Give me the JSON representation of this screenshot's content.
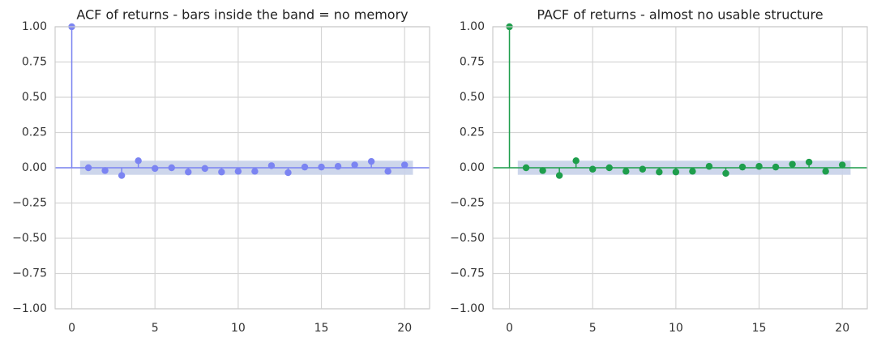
{
  "chart_data": [
    {
      "type": "stem",
      "title": "ACF of returns - bars inside the band = no memory",
      "x": [
        0,
        1,
        2,
        3,
        4,
        5,
        6,
        7,
        8,
        9,
        10,
        11,
        12,
        13,
        14,
        15,
        16,
        17,
        18,
        19,
        20
      ],
      "values": [
        1.0,
        0.0,
        -0.02,
        -0.055,
        0.05,
        -0.005,
        0.0,
        -0.03,
        -0.005,
        -0.03,
        -0.025,
        -0.025,
        0.015,
        -0.035,
        0.005,
        0.005,
        0.01,
        0.02,
        0.045,
        -0.025,
        0.02
      ],
      "color": "#7b84f2",
      "band": 0.05,
      "band_color": "#c8d2e9",
      "xlim": [
        -1,
        21.5
      ],
      "ylim": [
        -1,
        1
      ],
      "xticks": [
        0,
        5,
        10,
        15,
        20
      ],
      "yticks": [
        {
          "value": -1,
          "label": "−1.00"
        },
        {
          "value": -0.75,
          "label": "−0.75"
        },
        {
          "value": -0.5,
          "label": "−0.50"
        },
        {
          "value": -0.25,
          "label": "−0.25"
        },
        {
          "value": 0,
          "label": "0.00"
        },
        {
          "value": 0.25,
          "label": "0.25"
        },
        {
          "value": 0.5,
          "label": "0.50"
        },
        {
          "value": 0.75,
          "label": "0.75"
        },
        {
          "value": 1,
          "label": "1.00"
        }
      ],
      "grid": true
    },
    {
      "type": "stem",
      "title": "PACF of returns - almost no usable structure",
      "x": [
        0,
        1,
        2,
        3,
        4,
        5,
        6,
        7,
        8,
        9,
        10,
        11,
        12,
        13,
        14,
        15,
        16,
        17,
        18,
        19,
        20
      ],
      "values": [
        1.0,
        0.0,
        -0.02,
        -0.055,
        0.05,
        -0.01,
        0.0,
        -0.025,
        -0.01,
        -0.03,
        -0.03,
        -0.025,
        0.01,
        -0.04,
        0.005,
        0.01,
        0.005,
        0.025,
        0.04,
        -0.025,
        0.02
      ],
      "color": "#1e9e4c",
      "band": 0.05,
      "band_color": "#c8d2e9",
      "xlim": [
        -1,
        21.5
      ],
      "ylim": [
        -1,
        1
      ],
      "xticks": [
        0,
        5,
        10,
        15,
        20
      ],
      "yticks": [
        {
          "value": -1,
          "label": "−1.00"
        },
        {
          "value": -0.75,
          "label": "−0.75"
        },
        {
          "value": -0.5,
          "label": "−0.50"
        },
        {
          "value": -0.25,
          "label": "−0.25"
        },
        {
          "value": 0,
          "label": "0.00"
        },
        {
          "value": 0.25,
          "label": "0.25"
        },
        {
          "value": 0.5,
          "label": "0.50"
        },
        {
          "value": 0.75,
          "label": "0.75"
        },
        {
          "value": 1,
          "label": "1.00"
        }
      ],
      "grid": true
    }
  ]
}
